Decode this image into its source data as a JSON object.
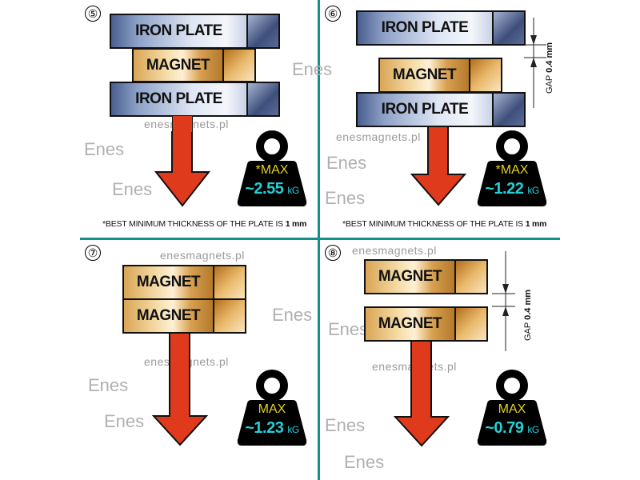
{
  "watermark": {
    "site": "enesmagnets.pl",
    "logo": "Enes"
  },
  "colors": {
    "divider": "#12908a",
    "max_label": "#e8d21c",
    "value": "#22d0d8",
    "arrow": "#e03a1c"
  },
  "panels": [
    {
      "number": "⑤",
      "blocks": [
        "IRON PLATE",
        "MAGNET",
        "IRON PLATE"
      ],
      "max_label": "*MAX",
      "value": "~2.55",
      "unit": "kG",
      "footnote": "*BEST MINIMUM THICKNESS OF THE PLATE IS",
      "footnote_value": "1 mm"
    },
    {
      "number": "⑥",
      "blocks": [
        "IRON PLATE",
        "MAGNET",
        "IRON PLATE"
      ],
      "gap_label": "GAP",
      "gap_value": "0.4 mm",
      "max_label": "*MAX",
      "value": "~1.22",
      "unit": "kG",
      "footnote": "*BEST MINIMUM THICKNESS OF THE PLATE IS",
      "footnote_value": "1 mm"
    },
    {
      "number": "⑦",
      "blocks": [
        "MAGNET",
        "MAGNET"
      ],
      "max_label": "MAX",
      "value": "~1.23",
      "unit": "kG"
    },
    {
      "number": "⑧",
      "blocks": [
        "MAGNET",
        "MAGNET"
      ],
      "gap_label": "GAP",
      "gap_value": "0.4 mm",
      "max_label": "MAX",
      "value": "~0.79",
      "unit": "kG"
    }
  ]
}
